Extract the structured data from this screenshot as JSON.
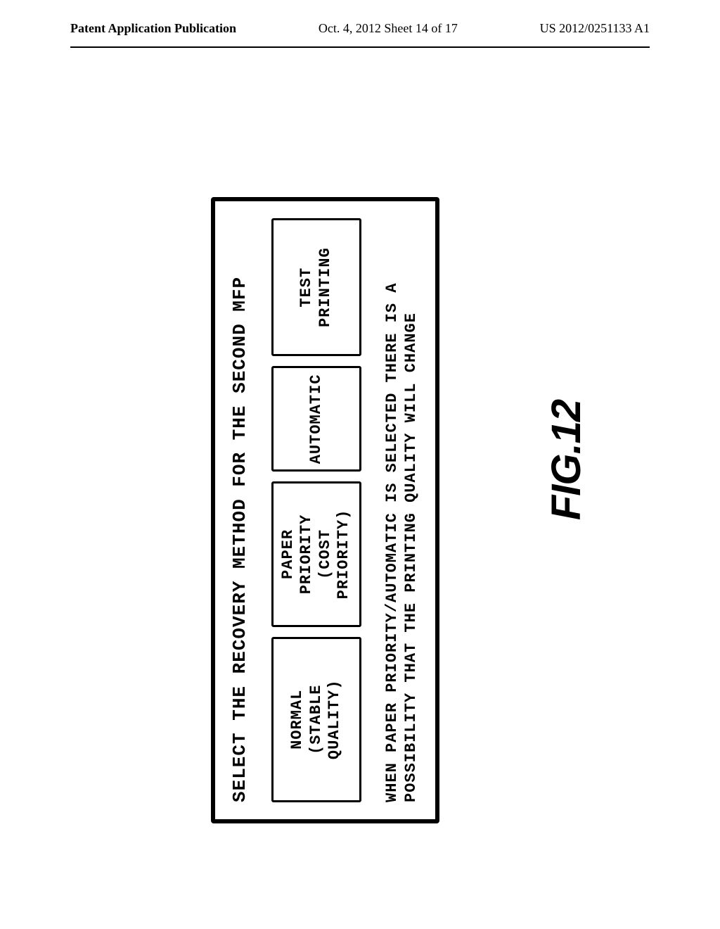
{
  "header": {
    "left": "Patent Application Publication",
    "center": "Oct. 4, 2012  Sheet 14 of 17",
    "right": "US 2012/0251133 A1"
  },
  "dialog": {
    "title": "SELECT THE RECOVERY METHOD FOR THE SECOND MFP",
    "buttons": {
      "normal": {
        "line1": "NORMAL",
        "line2": "(STABLE QUALITY)"
      },
      "paper": {
        "line1": "PAPER PRIORITY",
        "line2": "(COST PRIORITY)"
      },
      "automatic": {
        "line1": "AUTOMATIC"
      },
      "test": {
        "line1": "TEST PRINTING"
      }
    },
    "warning": "WHEN PAPER PRIORITY/AUTOMATIC IS SELECTED THERE IS A POSSIBILITY THAT THE PRINTING QUALITY WILL CHANGE"
  },
  "figure_label": "FIG.12",
  "colors": {
    "text": "#000000",
    "background": "#ffffff",
    "border": "#000000"
  }
}
